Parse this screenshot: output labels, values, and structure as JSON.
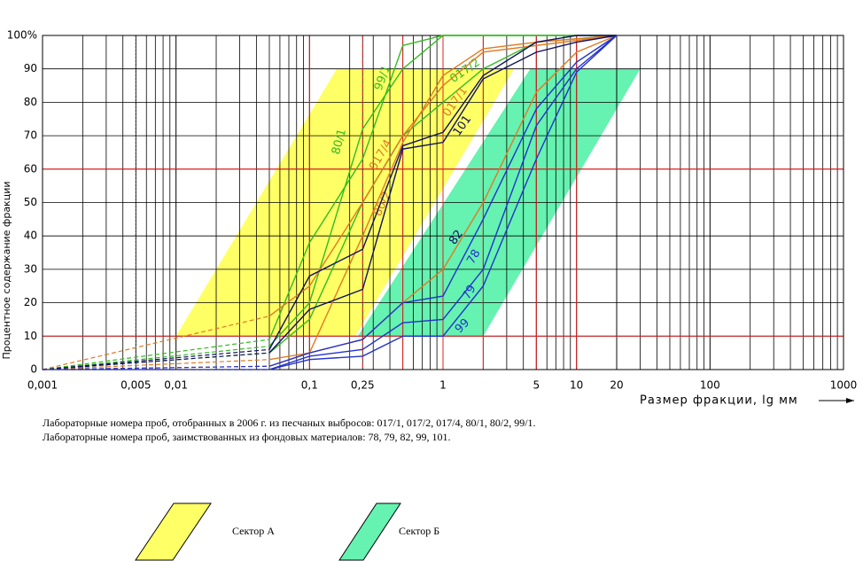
{
  "chart_data": {
    "type": "line",
    "xlog": true,
    "xlim": [
      0.001,
      1000
    ],
    "ylim": [
      0,
      100
    ],
    "xticks": [
      {
        "value": 0.001,
        "label": "0,001"
      },
      {
        "value": 0.005,
        "label": "0,005"
      },
      {
        "value": 0.01,
        "label": "0,01"
      },
      {
        "value": 0.1,
        "label": "0,1"
      },
      {
        "value": 0.25,
        "label": "0,25"
      },
      1,
      5,
      10,
      20,
      100,
      1000
    ],
    "yticks": [
      0,
      10,
      20,
      30,
      40,
      50,
      60,
      70,
      80,
      90,
      {
        "value": 100,
        "label": "100%"
      }
    ],
    "grid": true,
    "highlight_x": [
      0.1,
      0.25,
      0.5,
      1,
      2,
      5,
      10
    ],
    "highlight_y": [
      10,
      60
    ],
    "xlabel": "Размер фракции, lg мм",
    "ylabel": "Процентное содержание фракции",
    "sectors": [
      {
        "name": "Сектор А",
        "color": "#ffff66",
        "x": [
          0.01,
          0.22,
          3.4,
          0.16
        ],
        "y": [
          10,
          10,
          90,
          90
        ]
      },
      {
        "name": "Сектор Б",
        "color": "#66f2b0",
        "x": [
          0.23,
          2,
          30,
          4.5
        ],
        "y": [
          10,
          10,
          90,
          90
        ]
      }
    ],
    "series": [
      {
        "name": "80/1",
        "color": "#33bb22",
        "x": [
          0.001,
          0.05,
          0.1,
          0.25,
          0.5,
          1,
          20
        ],
        "values": [
          0,
          9,
          38,
          63,
          97,
          100,
          100
        ]
      },
      {
        "name": "99/1",
        "color": "#33bb22",
        "x": [
          0.001,
          0.05,
          0.1,
          0.25,
          0.5,
          1,
          20
        ],
        "values": [
          0,
          7,
          20,
          72,
          90,
          100,
          100
        ]
      },
      {
        "name": "017/2",
        "color": "#33bb22",
        "x": [
          0.001,
          0.05,
          0.1,
          0.25,
          0.5,
          1,
          2,
          5,
          20
        ],
        "values": [
          0,
          5,
          15,
          50,
          70,
          80,
          90,
          98,
          100
        ]
      },
      {
        "name": "017/4",
        "color": "#e07a22",
        "x": [
          0.001,
          0.05,
          0.1,
          0.25,
          0.5,
          1,
          2,
          20
        ],
        "values": [
          0,
          16,
          25,
          50,
          70,
          85,
          95,
          100
        ]
      },
      {
        "name": "80/2",
        "color": "#e07a22",
        "x": [
          0.001,
          0.05,
          0.1,
          0.25,
          0.5,
          1,
          2,
          5,
          20
        ],
        "values": [
          0,
          3,
          5,
          40,
          68,
          88,
          96,
          98,
          100
        ]
      },
      {
        "name": "017/1",
        "color": "#e07a22",
        "x": [
          0.001,
          0.05,
          0.1,
          0.25,
          0.5,
          1,
          2,
          5,
          10,
          20
        ],
        "values": [
          0,
          1,
          5,
          9,
          20,
          30,
          50,
          83,
          95,
          100
        ]
      },
      {
        "name": "101",
        "color": "#101060",
        "x": [
          0.001,
          0.05,
          0.1,
          0.25,
          0.5,
          1,
          2,
          5,
          10,
          20
        ],
        "values": [
          0,
          6,
          28,
          36,
          67,
          71,
          88,
          98,
          100,
          100
        ]
      },
      {
        "name": "82",
        "color": "#101060",
        "x": [
          0.001,
          0.05,
          0.1,
          0.25,
          0.5,
          1,
          2,
          5,
          10,
          20
        ],
        "values": [
          0,
          5,
          18,
          24,
          66,
          68,
          87,
          95,
          98,
          100
        ]
      },
      {
        "name": "78",
        "color": "#2233cc",
        "x": [
          0.001,
          0.05,
          0.1,
          0.25,
          0.5,
          1,
          2,
          5,
          10,
          20
        ],
        "values": [
          0,
          1,
          5,
          9,
          20,
          22,
          45,
          78,
          92,
          100
        ]
      },
      {
        "name": "79",
        "color": "#2233cc",
        "x": [
          0.001,
          0.05,
          0.1,
          0.25,
          0.5,
          1,
          2,
          5,
          10,
          20
        ],
        "values": [
          0,
          0,
          4,
          6,
          14,
          15,
          30,
          73,
          90,
          100
        ]
      },
      {
        "name": "99",
        "color": "#2233cc",
        "x": [
          0.001,
          0.05,
          0.1,
          0.25,
          0.5,
          1,
          2,
          5,
          10,
          20
        ],
        "values": [
          0,
          0,
          3,
          4,
          10,
          10,
          25,
          63,
          89,
          100
        ]
      }
    ],
    "notes": [
      "Лабораторные номера проб, отобранных в 2006 г. из песчаных выбросов: 017/1, 017/2, 017/4, 80/1, 80/2, 99/1.",
      "Лабораторные номера проб, заимствованных из фондовых материалов: 78, 79, 82, 99, 101."
    ]
  }
}
